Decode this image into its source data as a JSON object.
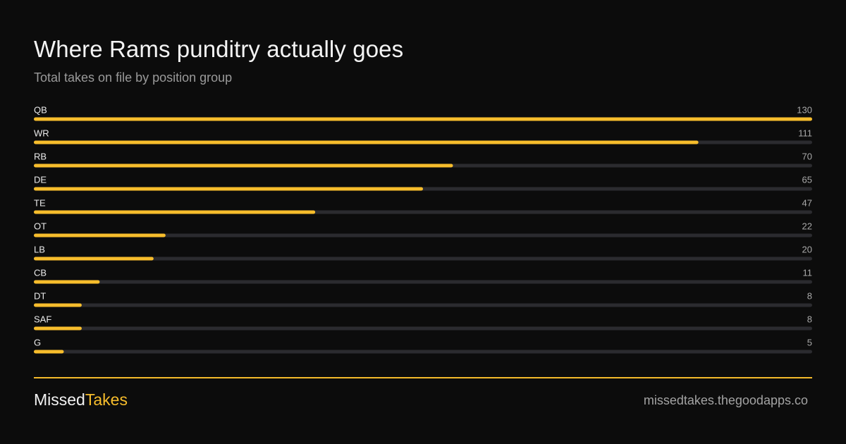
{
  "header": {
    "title": "Where Rams punditry actually goes",
    "subtitle": "Total takes on file by position group"
  },
  "chart_data": {
    "type": "bar",
    "orientation": "horizontal",
    "title": "Where Rams punditry actually goes",
    "subtitle": "Total takes on file by position group",
    "categories": [
      "QB",
      "WR",
      "RB",
      "DE",
      "TE",
      "OT",
      "LB",
      "CB",
      "DT",
      "SAF",
      "G"
    ],
    "values": [
      130,
      111,
      70,
      65,
      47,
      22,
      20,
      11,
      8,
      8,
      5
    ],
    "xlim": [
      0,
      130
    ],
    "grid": false,
    "legend": "none",
    "colors": {
      "bar": "#f7bd2c",
      "track": "#2b2b2f"
    }
  },
  "footer": {
    "brand_part1": "Missed",
    "brand_part2": "Takes",
    "brand_accent_color": "#f7bd2c",
    "url": "missedtakes.thegoodapps.co"
  }
}
